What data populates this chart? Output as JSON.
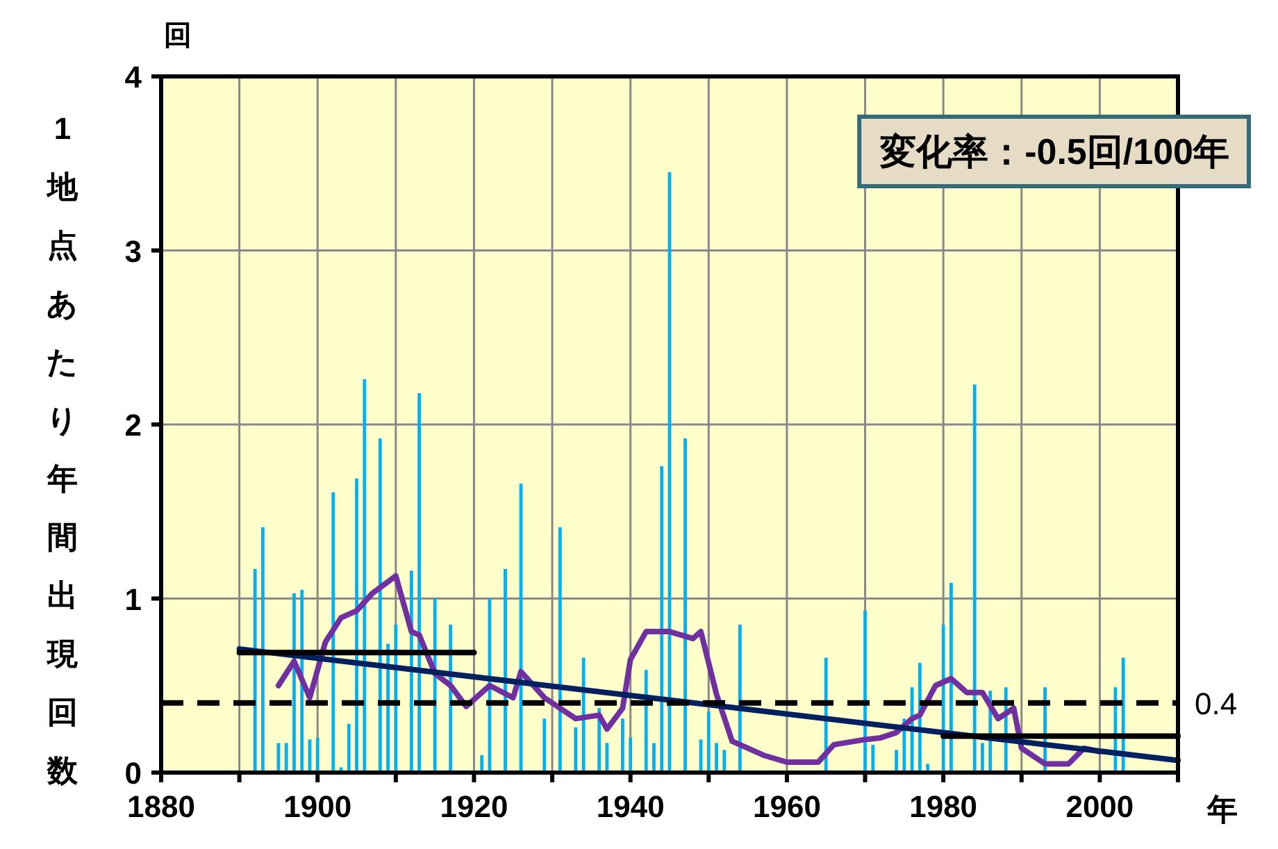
{
  "chart_data": {
    "type": "bar",
    "xlabel": "年",
    "ylabel": "1地点あたり年間出現回数",
    "annotations": [
      "回",
      "変化率：-0.5回/100年"
    ],
    "xlim": [
      1880,
      2010
    ],
    "xticks": [
      1880,
      {
        "value": 1890,
        "label": null
      },
      1900,
      {
        "value": 1910,
        "label": null
      },
      1920,
      {
        "value": 1930,
        "label": null
      },
      1940,
      {
        "value": 1950,
        "label": null
      },
      1960,
      {
        "value": 1970,
        "label": null
      },
      1980,
      {
        "value": 1990,
        "label": null
      },
      2000,
      {
        "value": 2010,
        "label": null
      }
    ],
    "ylim": [
      0,
      4
    ],
    "yticks": [
      0,
      1,
      2,
      3,
      4
    ],
    "grid": true,
    "ref_lines": [
      {
        "axis": "y",
        "value": 0.4,
        "label": "0.4",
        "color": "#000000",
        "line_style": "dashed"
      }
    ],
    "series": [
      {
        "color": "#00b0f0",
        "x": [
          1892,
          1893,
          1895,
          1896,
          1897,
          1898,
          1899,
          1900,
          1902,
          1903,
          1904,
          1905,
          1906,
          1908,
          1909,
          1910,
          1912,
          1913,
          1915,
          1917,
          1921,
          1922,
          1924,
          1926,
          1929,
          1931,
          1933,
          1934,
          1936,
          1937,
          1939,
          1940,
          1942,
          1943,
          1944,
          1945,
          1947,
          1949,
          1950,
          1951,
          1952,
          1954,
          1965,
          1970,
          1971,
          1974,
          1975,
          1976,
          1977,
          1978,
          1980,
          1981,
          1984,
          1985,
          1986,
          1988,
          1993,
          2002,
          2003
        ],
        "values": [
          1.17,
          1.41,
          0.17,
          0.17,
          1.03,
          1.05,
          0.19,
          0.2,
          1.61,
          0.03,
          0.28,
          1.69,
          2.26,
          1.92,
          0.74,
          0.85,
          1.16,
          2.18,
          1.0,
          0.85,
          0.1,
          1.0,
          1.17,
          1.66,
          0.31,
          1.41,
          0.26,
          0.66,
          0.37,
          0.17,
          0.31,
          0.2,
          0.59,
          0.17,
          1.76,
          3.45,
          1.92,
          0.19,
          0.35,
          0.17,
          0.13,
          0.85,
          0.66,
          0.93,
          0.16,
          0.13,
          0.31,
          0.49,
          0.63,
          0.05,
          0.85,
          1.09,
          2.23,
          0.17,
          0.47,
          0.49,
          0.49,
          0.49,
          0.66
        ]
      },
      {
        "type": "line",
        "color": "#7030a0",
        "line_style": "solid",
        "x": [
          1895,
          1897,
          1899,
          1901,
          1903,
          1905,
          1907,
          1910,
          1912,
          1913,
          1915,
          1917,
          1919,
          1922,
          1925,
          1926,
          1929,
          1933,
          1936,
          1937,
          1939,
          1940,
          1942,
          1945,
          1948,
          1949,
          1951,
          1953,
          1957,
          1960,
          1964,
          1966,
          1970,
          1972,
          1974,
          1976,
          1977,
          1979,
          1981,
          1983,
          1985,
          1987,
          1989,
          1990,
          1993,
          1996,
          1998,
          2000
        ],
        "values": [
          0.5,
          0.64,
          0.43,
          0.75,
          0.89,
          0.93,
          1.03,
          1.13,
          0.81,
          0.79,
          0.57,
          0.5,
          0.38,
          0.5,
          0.43,
          0.58,
          0.43,
          0.31,
          0.33,
          0.25,
          0.37,
          0.65,
          0.81,
          0.81,
          0.77,
          0.81,
          0.45,
          0.18,
          0.1,
          0.06,
          0.06,
          0.16,
          0.19,
          0.2,
          0.23,
          0.31,
          0.33,
          0.5,
          0.54,
          0.46,
          0.46,
          0.31,
          0.37,
          0.14,
          0.05,
          0.05,
          0.14,
          0.12
        ]
      },
      {
        "type": "line",
        "color": "#002060",
        "line_style": "solid",
        "x": [
          1890,
          2010
        ],
        "values": [
          0.71,
          0.07
        ]
      },
      {
        "type": "line",
        "color": "#000000",
        "line_style": "solid",
        "x": [
          1890,
          1920
        ],
        "values": [
          0.69,
          0.69
        ]
      },
      {
        "type": "line",
        "color": "#000000",
        "line_style": "solid",
        "x": [
          1980,
          2010
        ],
        "values": [
          0.21,
          0.21
        ]
      }
    ]
  }
}
